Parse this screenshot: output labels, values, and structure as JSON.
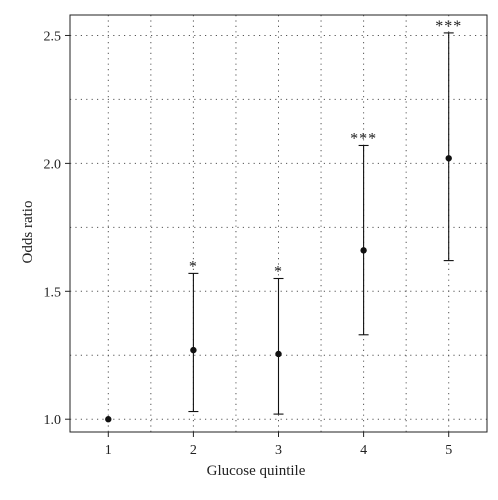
{
  "chart_data": {
    "type": "scatter",
    "style": "point estimates with error bars",
    "title": "",
    "xlabel": "Glucose quintile",
    "ylabel": "Odds ratio",
    "x": [
      1,
      2,
      3,
      4,
      5
    ],
    "x_tick_labels": [
      "1",
      "2",
      "3",
      "4",
      "5"
    ],
    "xlim": [
      0.55,
      5.45
    ],
    "ylim": [
      0.95,
      2.58
    ],
    "y_ticks": [
      1.0,
      1.5,
      2.0,
      2.5
    ],
    "y_tick_labels": [
      "1.0",
      "1.5",
      "2.0",
      "2.5"
    ],
    "grid": "dotted, at x ticks, x midpoints and every 0.25 on y",
    "series": [
      {
        "values": [
          1.0,
          1.27,
          1.255,
          1.66,
          2.02
        ],
        "lower": [
          1.0,
          1.03,
          1.02,
          1.33,
          1.62
        ],
        "upper": [
          1.0,
          1.57,
          1.55,
          2.07,
          2.51
        ],
        "significance": [
          "",
          "*",
          "*",
          "***",
          "***"
        ]
      }
    ],
    "colors": {
      "marker": "#111111",
      "grid": "#555555",
      "axis": "#222222"
    }
  }
}
